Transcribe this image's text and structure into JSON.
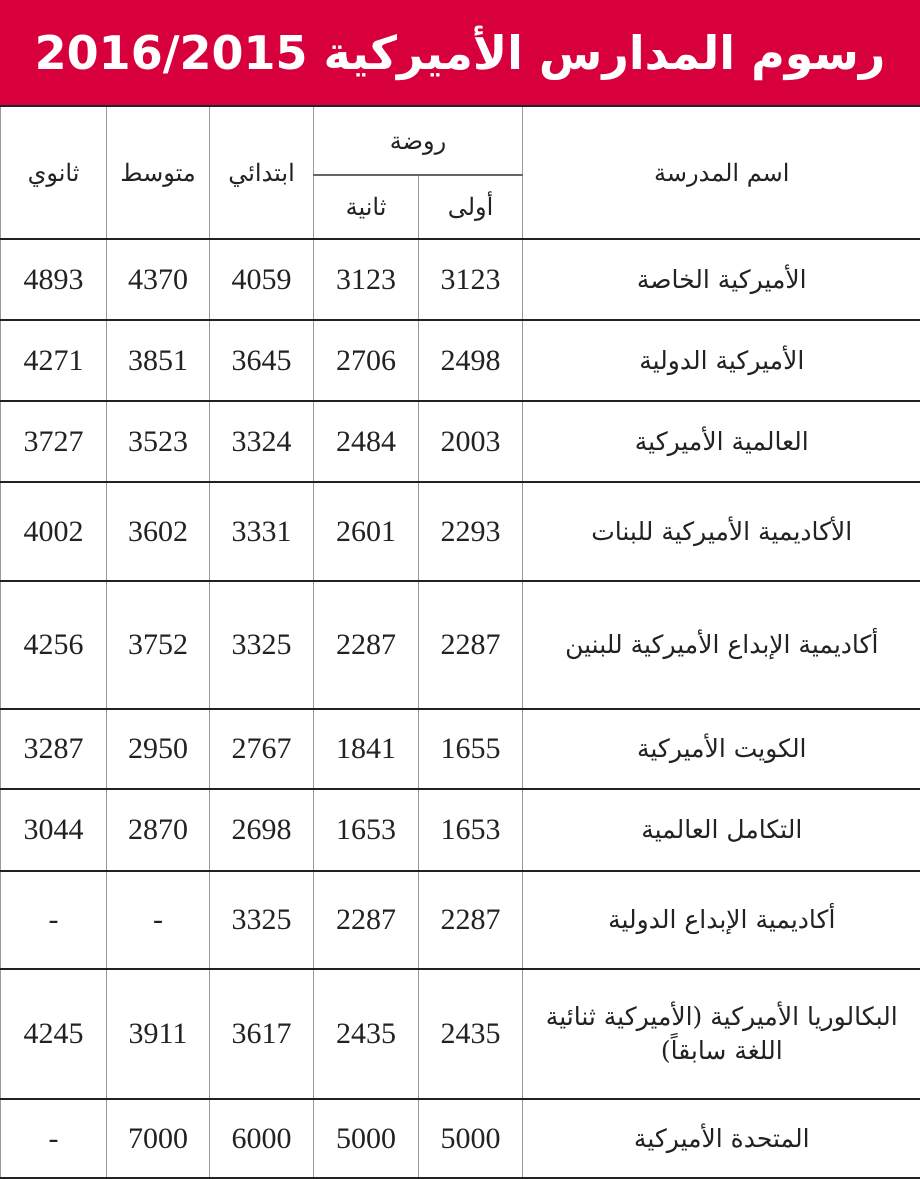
{
  "title": "رسوم المدارس الأميركية 2016/2015",
  "headers": {
    "school": "اسم المدرسة",
    "kg": "روضة",
    "kg1": "أولى",
    "kg2": "ثانية",
    "primary": "ابتدائي",
    "middle": "متوسط",
    "secondary": "ثانوي"
  },
  "rows": [
    {
      "name": "الأميركية الخاصة",
      "kg1": "3123",
      "kg2": "3123",
      "primary": "4059",
      "middle": "4370",
      "secondary": "4893"
    },
    {
      "name": "الأميركية الدولية",
      "kg1": "2498",
      "kg2": "2706",
      "primary": "3645",
      "middle": "3851",
      "secondary": "4271"
    },
    {
      "name": "العالمية الأميركية",
      "kg1": "2003",
      "kg2": "2484",
      "primary": "3324",
      "middle": "3523",
      "secondary": "3727"
    },
    {
      "name": "الأكاديمية الأميركية للبنات",
      "kg1": "2293",
      "kg2": "2601",
      "primary": "3331",
      "middle": "3602",
      "secondary": "4002"
    },
    {
      "name": "أكاديمية الإبداع الأميركية للبنين",
      "kg1": "2287",
      "kg2": "2287",
      "primary": "3325",
      "middle": "3752",
      "secondary": "4256"
    },
    {
      "name": "الكويت الأميركية",
      "kg1": "1655",
      "kg2": "1841",
      "primary": "2767",
      "middle": "2950",
      "secondary": "3287"
    },
    {
      "name": "التكامل العالمية",
      "kg1": "1653",
      "kg2": "1653",
      "primary": "2698",
      "middle": "2870",
      "secondary": "3044"
    },
    {
      "name": "أكاديمية الإبداع الدولية",
      "kg1": "2287",
      "kg2": "2287",
      "primary": "3325",
      "middle": "-",
      "secondary": "-"
    },
    {
      "name": "البكالوريا الأميركية (الأميركية ثنائية اللغة سابقاً)",
      "kg1": "2435",
      "kg2": "2435",
      "primary": "3617",
      "middle": "3911",
      "secondary": "4245"
    },
    {
      "name": "المتحدة الأميركية",
      "kg1": "5000",
      "kg2": "5000",
      "primary": "6000",
      "middle": "7000",
      "secondary": "-"
    }
  ],
  "colors": {
    "title_bg": "#d7003c"
  }
}
